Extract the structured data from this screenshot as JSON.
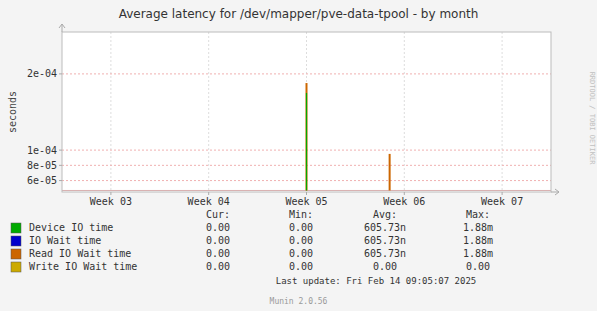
{
  "chart_data": {
    "type": "stem",
    "title": "Average latency for /dev/mapper/pve-data-tpool - by month",
    "y_label": "seconds",
    "watermark": "RRDTOOL / TOBI OETIKER",
    "footer": "Munin 2.0.56",
    "last_update": "Last update: Fri Feb 14 09:05:07 2025",
    "xlim": [
      -0.5,
      4.5
    ],
    "xticks": [
      {
        "value": 0,
        "label": "Week 03"
      },
      {
        "value": 1,
        "label": "Week 04"
      },
      {
        "value": 2,
        "label": "Week 05"
      },
      {
        "value": 3,
        "label": "Week 06"
      },
      {
        "value": 4,
        "label": "Week 07"
      }
    ],
    "ylim": [
      4.5e-05,
      0.000255
    ],
    "yticks": [
      {
        "value": 6e-05,
        "label": "6e-05"
      },
      {
        "value": 8e-05,
        "label": "8e-05"
      },
      {
        "value": 0.0001,
        "label": "1e-04"
      },
      {
        "value": 0.0002,
        "label": "2e-04"
      }
    ],
    "grid": true,
    "baseline": 4.7e-05,
    "table_headers": [
      "Cur:",
      "Min:",
      "Avg:",
      "Max:"
    ],
    "series": [
      {
        "name": "Device IO time",
        "color": "#00aa00",
        "x": [
          2.0
        ],
        "values": [
          0.000175
        ],
        "stats": [
          "0.00",
          "0.00",
          "605.73n",
          "1.88m"
        ]
      },
      {
        "name": "IO Wait time",
        "color": "#0000cc",
        "x": [],
        "values": [],
        "stats": [
          "0.00",
          "0.00",
          "605.73n",
          "1.88m"
        ]
      },
      {
        "name": "Read IO Wait time",
        "color": "#cc6600",
        "x": [
          2.0,
          2.85
        ],
        "values": [
          0.000188,
          9.5e-05
        ],
        "stats": [
          "0.00",
          "0.00",
          "605.73n",
          "1.88m"
        ]
      },
      {
        "name": "Write IO Wait time",
        "color": "#ccaa00",
        "x": [],
        "values": [],
        "stats": [
          "0.00",
          "0.00",
          "0.00",
          "0.00"
        ]
      }
    ]
  }
}
